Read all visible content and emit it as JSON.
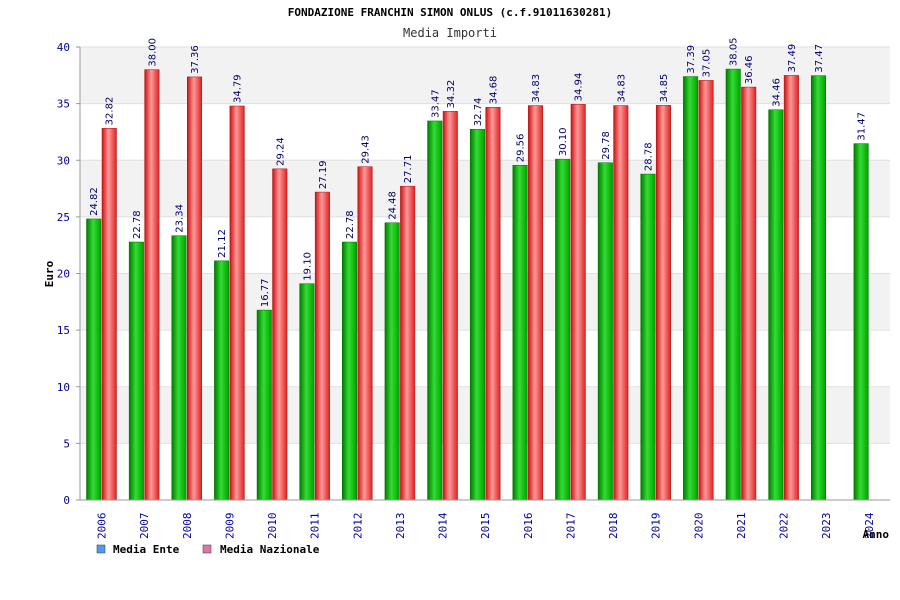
{
  "chart_data": {
    "type": "bar",
    "title": "FONDAZIONE FRANCHIN SIMON ONLUS (c.f.91011630281)",
    "subtitle": "Media Importi",
    "xlabel": "Anno",
    "ylabel": "Euro",
    "ylim": [
      0,
      40
    ],
    "yticks": [
      0,
      5,
      10,
      15,
      20,
      25,
      30,
      35,
      40
    ],
    "categories": [
      "2006",
      "2007",
      "2008",
      "2009",
      "2010",
      "2011",
      "2012",
      "2013",
      "2014",
      "2015",
      "2016",
      "2017",
      "2018",
      "2019",
      "2020",
      "2021",
      "2022",
      "2023",
      "2024"
    ],
    "series": [
      {
        "name": "Media Ente",
        "color": "#00aa00",
        "values": [
          24.82,
          22.78,
          23.34,
          21.12,
          16.77,
          19.1,
          22.78,
          24.48,
          33.47,
          32.74,
          29.56,
          30.1,
          29.78,
          28.78,
          37.39,
          38.05,
          34.46,
          37.47,
          31.47
        ],
        "labels": [
          "24.82",
          "22.78",
          "23.34",
          "21.12",
          "16.77",
          "19.10",
          "22.78",
          "24.48",
          "33.47",
          "32.74",
          "29.56",
          "30.10",
          "29.78",
          "28.78",
          "37.39",
          "38.05",
          "34.46",
          "37.47",
          "31.47"
        ]
      },
      {
        "name": "Media Nazionale",
        "color": "#dd2222",
        "values": [
          32.82,
          38.0,
          37.36,
          34.79,
          29.24,
          27.19,
          29.43,
          27.71,
          34.32,
          34.68,
          34.83,
          34.94,
          34.83,
          34.85,
          37.05,
          36.46,
          37.49,
          null,
          null
        ],
        "labels": [
          "32.82",
          "38.00",
          "37.36",
          "34.79",
          "29.24",
          "27.19",
          "29.43",
          "27.71",
          "34.32",
          "34.68",
          "34.83",
          "34.94",
          "34.83",
          "34.85",
          "37.05",
          "36.46",
          "37.49",
          null,
          null
        ]
      }
    ],
    "legend": {
      "position": "bottom-left",
      "items": [
        {
          "name": "Media Ente",
          "color": "#5599ee"
        },
        {
          "name": "Media Nazionale",
          "color": "#dd77aa"
        }
      ]
    },
    "grid": "horizontal-bands"
  }
}
